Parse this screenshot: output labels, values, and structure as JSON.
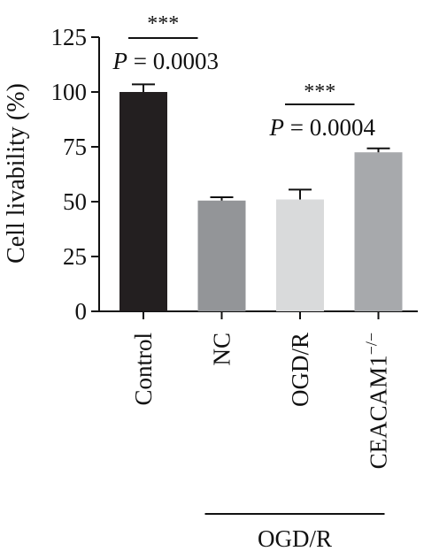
{
  "chart_data": {
    "type": "bar",
    "ylabel": "Cell livability (%)",
    "ylim": [
      0,
      125
    ],
    "yticks": [
      0,
      25,
      50,
      75,
      100,
      125
    ],
    "grid": false,
    "categories": [
      {
        "base": "Control",
        "sup": ""
      },
      {
        "base": "NC",
        "sup": ""
      },
      {
        "base": "OGD/R",
        "sup": ""
      },
      {
        "base": "CEACAM1",
        "sup": "−/−"
      }
    ],
    "values": [
      100,
      50.5,
      51,
      72.5
    ],
    "errors": [
      3.5,
      1.5,
      4.5,
      1.8
    ],
    "colors": [
      "#231f20",
      "#939598",
      "#d9dadb",
      "#a7a9ac"
    ],
    "comparisons": [
      {
        "from": 0,
        "to": 1,
        "stars": "***",
        "p_prefix": "P",
        "p_value": "= 0.0003"
      },
      {
        "from": 2,
        "to": 3,
        "stars": "***",
        "p_prefix": "P",
        "p_value": "= 0.0004"
      }
    ],
    "group_bracket": {
      "from": 1,
      "to": 3,
      "label": "OGD/R"
    }
  }
}
